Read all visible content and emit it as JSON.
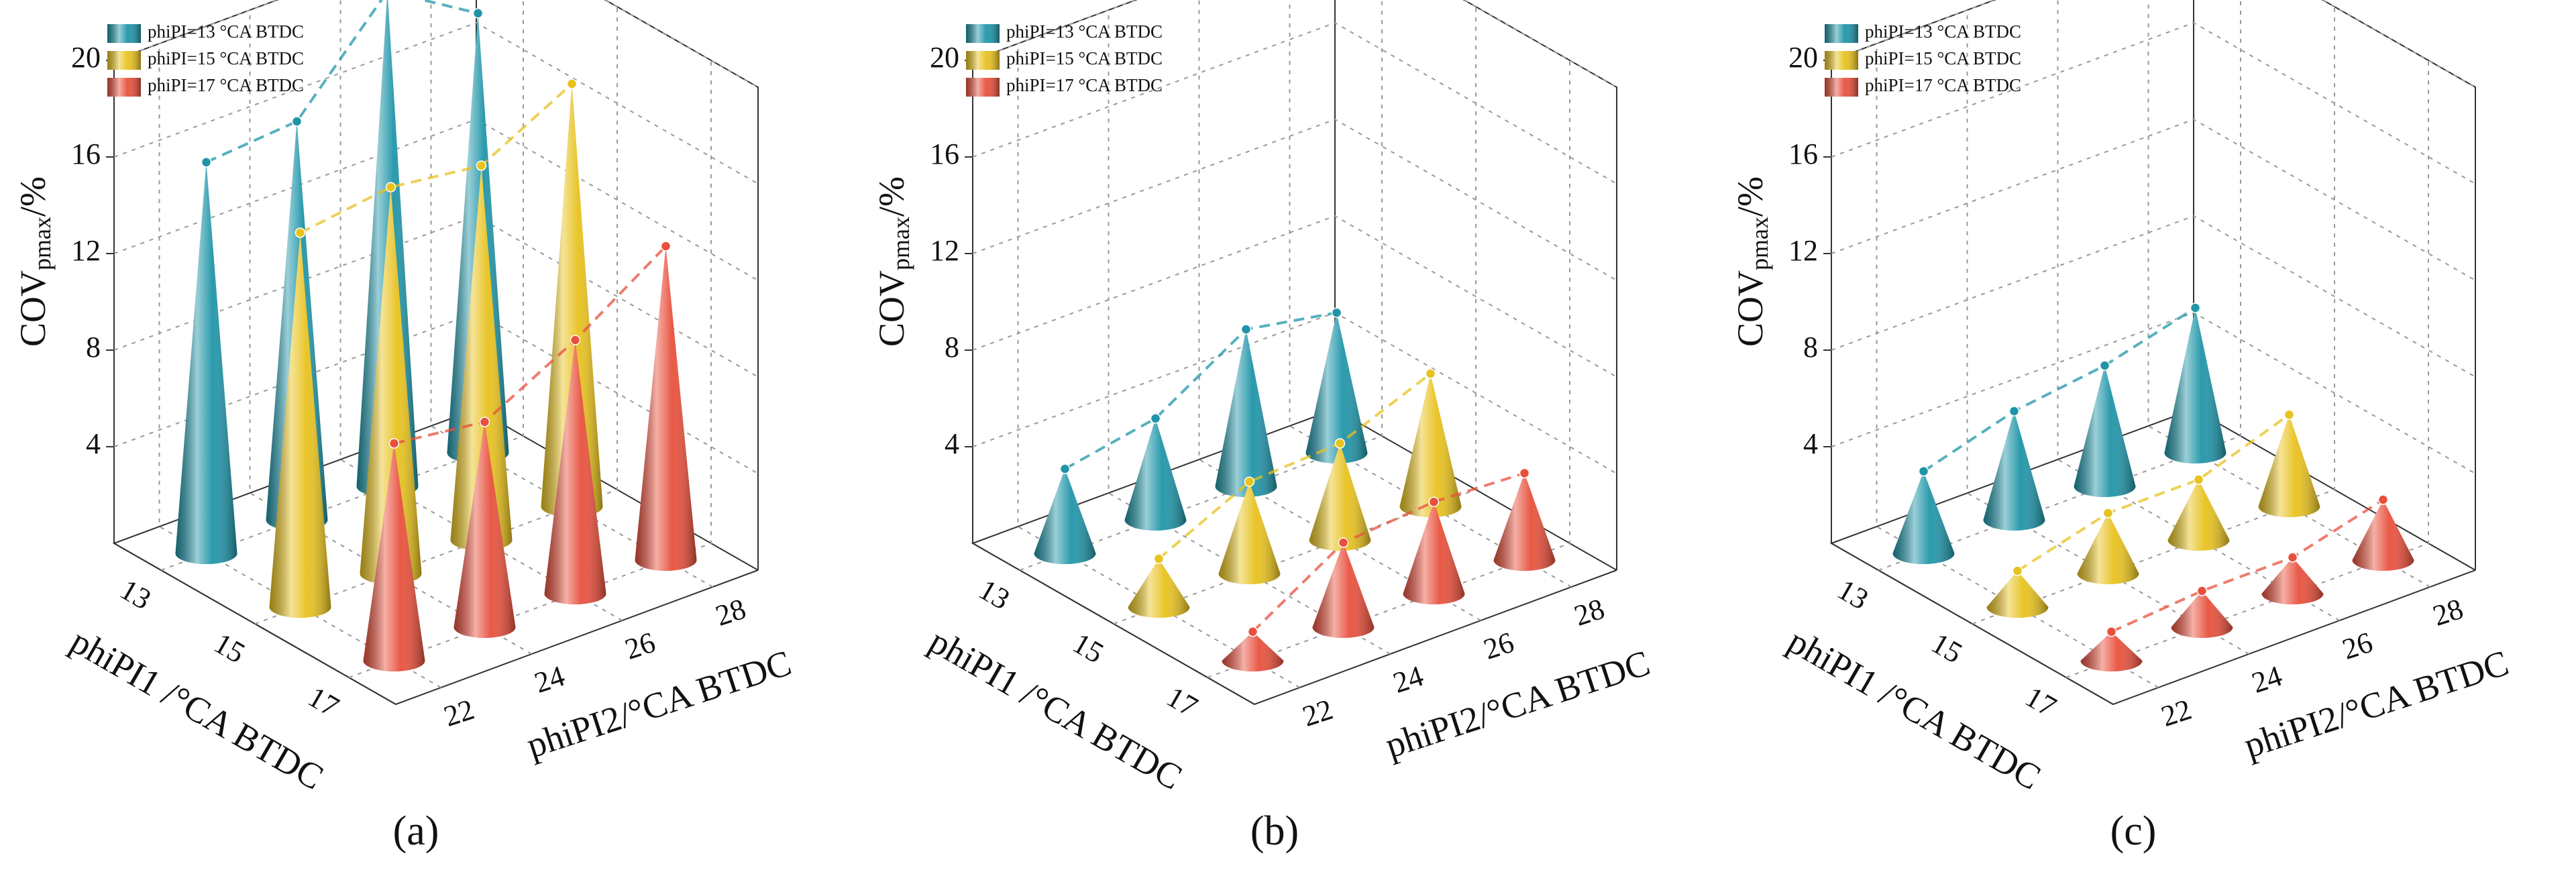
{
  "chart_data": [
    {
      "type": "cone3d",
      "panel_label": "(a)",
      "ylabel": {
        "main": "COV",
        "sub": "pmax",
        "unit": "/%"
      },
      "xlabel": "phiPI2/°CA BTDC",
      "zlabel": "phiPI1 /°CA BTDC",
      "categories": [
        22,
        24,
        26,
        28
      ],
      "depth_categories": [
        13,
        15,
        17
      ],
      "ylim": [
        0,
        20
      ],
      "yticks": [
        4,
        8,
        12,
        16,
        20
      ],
      "grid": true,
      "legend": "upper left",
      "series": [
        {
          "name": "phiPI=13 °CA BTDC",
          "color": "#1f95a8",
          "values": [
            16.2,
            16.5,
            20.5,
            18.2
          ]
        },
        {
          "name": "phiPI=15 °CA BTDC",
          "color": "#e8c21e",
          "values": [
            15.5,
            16.0,
            15.5,
            17.5
          ]
        },
        {
          "name": "phiPI=17 °CA BTDC",
          "color": "#e8503c",
          "values": [
            9.0,
            8.5,
            10.5,
            13.0
          ]
        }
      ]
    },
    {
      "type": "cone3d",
      "panel_label": "(b)",
      "ylabel": {
        "main": "COV",
        "sub": "pmax",
        "unit": "/%"
      },
      "xlabel": "phiPI2/°CA BTDC",
      "zlabel": "phiPI1 /°CA BTDC",
      "categories": [
        22,
        24,
        26,
        28
      ],
      "depth_categories": [
        13,
        15,
        17
      ],
      "ylim": [
        0,
        20
      ],
      "yticks": [
        4,
        8,
        12,
        16,
        20
      ],
      "grid": true,
      "legend": "upper left",
      "series": [
        {
          "name": "phiPI=13 °CA BTDC",
          "color": "#1f95a8",
          "values": [
            3.5,
            4.2,
            6.5,
            5.8
          ]
        },
        {
          "name": "phiPI=15 °CA BTDC",
          "color": "#e8c21e",
          "values": [
            2.0,
            3.8,
            4.0,
            5.5
          ]
        },
        {
          "name": "phiPI=17 °CA BTDC",
          "color": "#e8503c",
          "values": [
            1.2,
            3.5,
            3.8,
            3.6
          ]
        }
      ]
    },
    {
      "type": "cone3d",
      "panel_label": "(c)",
      "ylabel": {
        "main": "COV",
        "sub": "pmax",
        "unit": "/%"
      },
      "xlabel": "phiPI2/°CA BTDC",
      "zlabel": "phiPI1 /°CA BTDC",
      "categories": [
        22,
        24,
        26,
        28
      ],
      "depth_categories": [
        13,
        15,
        17
      ],
      "ylim": [
        0,
        20
      ],
      "yticks": [
        4,
        8,
        12,
        16,
        20
      ],
      "grid": true,
      "legend": "upper left",
      "series": [
        {
          "name": "phiPI=13 °CA BTDC",
          "color": "#1f95a8",
          "values": [
            3.4,
            4.5,
            5.0,
            6.0
          ]
        },
        {
          "name": "phiPI=15 °CA BTDC",
          "color": "#e8c21e",
          "values": [
            1.5,
            2.5,
            2.5,
            3.8
          ]
        },
        {
          "name": "phiPI=17 °CA BTDC",
          "color": "#e8503c",
          "values": [
            1.2,
            1.5,
            1.5,
            2.5
          ]
        }
      ]
    }
  ]
}
